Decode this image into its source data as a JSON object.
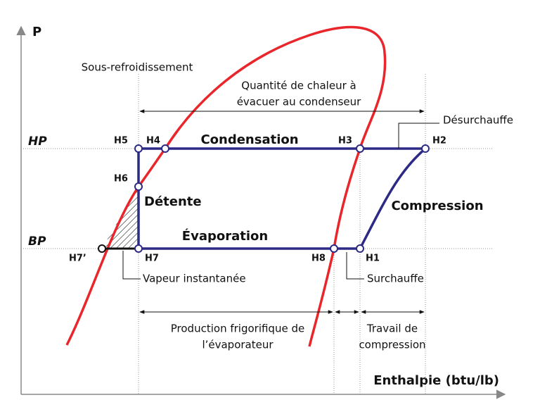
{
  "axes": {
    "y_label": "P",
    "x_label": "Enthalpie (btu/lb)",
    "hp": "HP",
    "bp": "BP"
  },
  "points": {
    "h1": "H1",
    "h2": "H2",
    "h3": "H3",
    "h4": "H4",
    "h5": "H5",
    "h6": "H6",
    "h7": "H7",
    "h7p": "H7’",
    "h8": "H8"
  },
  "processes": {
    "condensation": "Condensation",
    "detente": "Détente",
    "evaporation": "Évaporation",
    "compression": "Compression"
  },
  "annotations": {
    "sous_refroidissement": "Sous-refroidissement",
    "chaleur_condenseur": [
      "Quantité de chaleur à",
      "évacuer au condenseur"
    ],
    "desurchauffe": "Désurchauffe",
    "vapeur_instantanee": "Vapeur instantanée",
    "surchauffe": "Surchauffe",
    "production_frigorifique": [
      "Production frigorifique de",
      "l’évaporateur"
    ],
    "travail_compression": [
      "Travail de",
      "compression"
    ]
  }
}
